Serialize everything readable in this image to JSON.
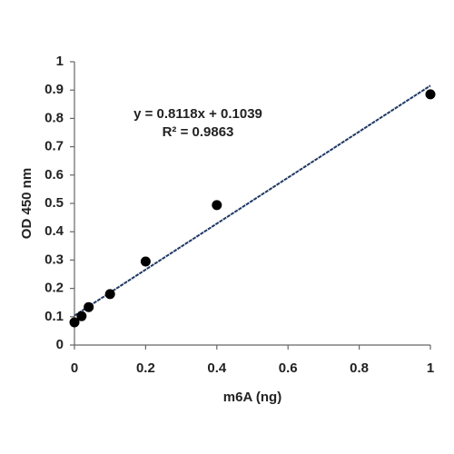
{
  "chart_data": {
    "type": "scatter",
    "x_label": "m6A (ng)",
    "y_label": "OD 450 nm",
    "x": [
      0,
      0.02,
      0.04,
      0.1,
      0.2,
      0.4,
      1
    ],
    "series": [
      {
        "name": "OD",
        "color": "#000000",
        "values": [
          0.08,
          0.102,
          0.134,
          0.18,
          0.295,
          0.494,
          0.885
        ]
      }
    ],
    "xlim": [
      0,
      1
    ],
    "ylim": [
      0,
      1
    ],
    "xticks": [
      0,
      0.2,
      0.4,
      0.6,
      0.8,
      1
    ],
    "yticks": [
      0,
      0.1,
      0.2,
      0.3,
      0.4,
      0.5,
      0.6,
      0.7,
      0.8,
      0.9,
      1
    ],
    "grid": false,
    "trendline": {
      "slope": 0.8118,
      "intercept": 0.1039,
      "color": "#1f3864",
      "equation": "y = 0.8118x + 0.1039",
      "r_squared": "R² = 0.9863"
    }
  }
}
